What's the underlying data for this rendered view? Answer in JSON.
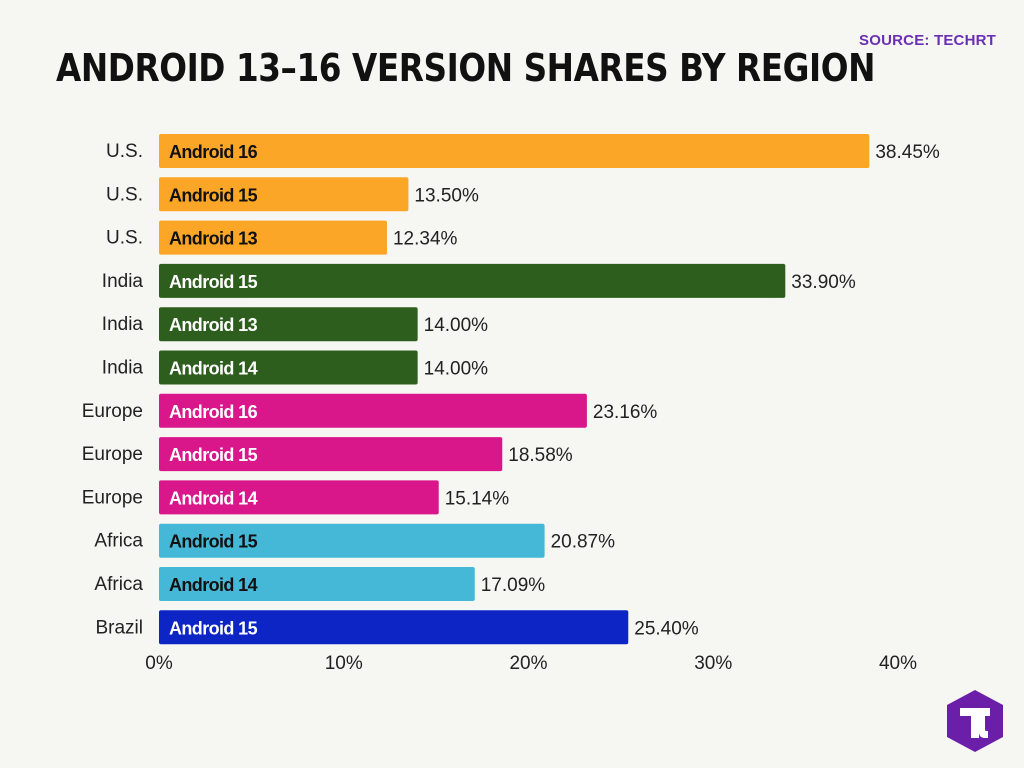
{
  "header": {
    "source": "SOURCE: TECHRT",
    "title": "ANDROID 13–16 VERSION SHARES BY REGION"
  },
  "colors": {
    "U.S.": "#fba626",
    "India": "#2e5e1e",
    "Europe": "#d9168a",
    "Africa": "#44b8d6",
    "Brazil": "#0c25c4"
  },
  "logo": {
    "icon": "techrt-t-hexagon-icon",
    "color": "#6b1fa8"
  },
  "chart_data": {
    "type": "bar",
    "orientation": "horizontal",
    "title": "ANDROID 13–16 VERSION SHARES BY REGION",
    "xlim": [
      0,
      40
    ],
    "xticks": [
      "0%",
      "10%",
      "20%",
      "30%",
      "40%"
    ],
    "grid": false,
    "rows": [
      {
        "category": "U.S.",
        "series": "Android 16",
        "value": 38.45,
        "label": "38.45%"
      },
      {
        "category": "U.S.",
        "series": "Android 15",
        "value": 13.5,
        "label": "13.50%"
      },
      {
        "category": "U.S.",
        "series": "Android 13",
        "value": 12.34,
        "label": "12.34%"
      },
      {
        "category": "India",
        "series": "Android 15",
        "value": 33.9,
        "label": "33.90%"
      },
      {
        "category": "India",
        "series": "Android 13",
        "value": 14.0,
        "label": "14.00%"
      },
      {
        "category": "India",
        "series": "Android 14",
        "value": 14.0,
        "label": "14.00%"
      },
      {
        "category": "Europe",
        "series": "Android 16",
        "value": 23.16,
        "label": "23.16%"
      },
      {
        "category": "Europe",
        "series": "Android 15",
        "value": 18.58,
        "label": "18.58%"
      },
      {
        "category": "Europe",
        "series": "Android 14",
        "value": 15.14,
        "label": "15.14%"
      },
      {
        "category": "Africa",
        "series": "Android 15",
        "value": 20.87,
        "label": "20.87%"
      },
      {
        "category": "Africa",
        "series": "Android 14",
        "value": 17.09,
        "label": "17.09%"
      },
      {
        "category": "Brazil",
        "series": "Android 15",
        "value": 25.4,
        "label": "25.40%"
      }
    ]
  }
}
